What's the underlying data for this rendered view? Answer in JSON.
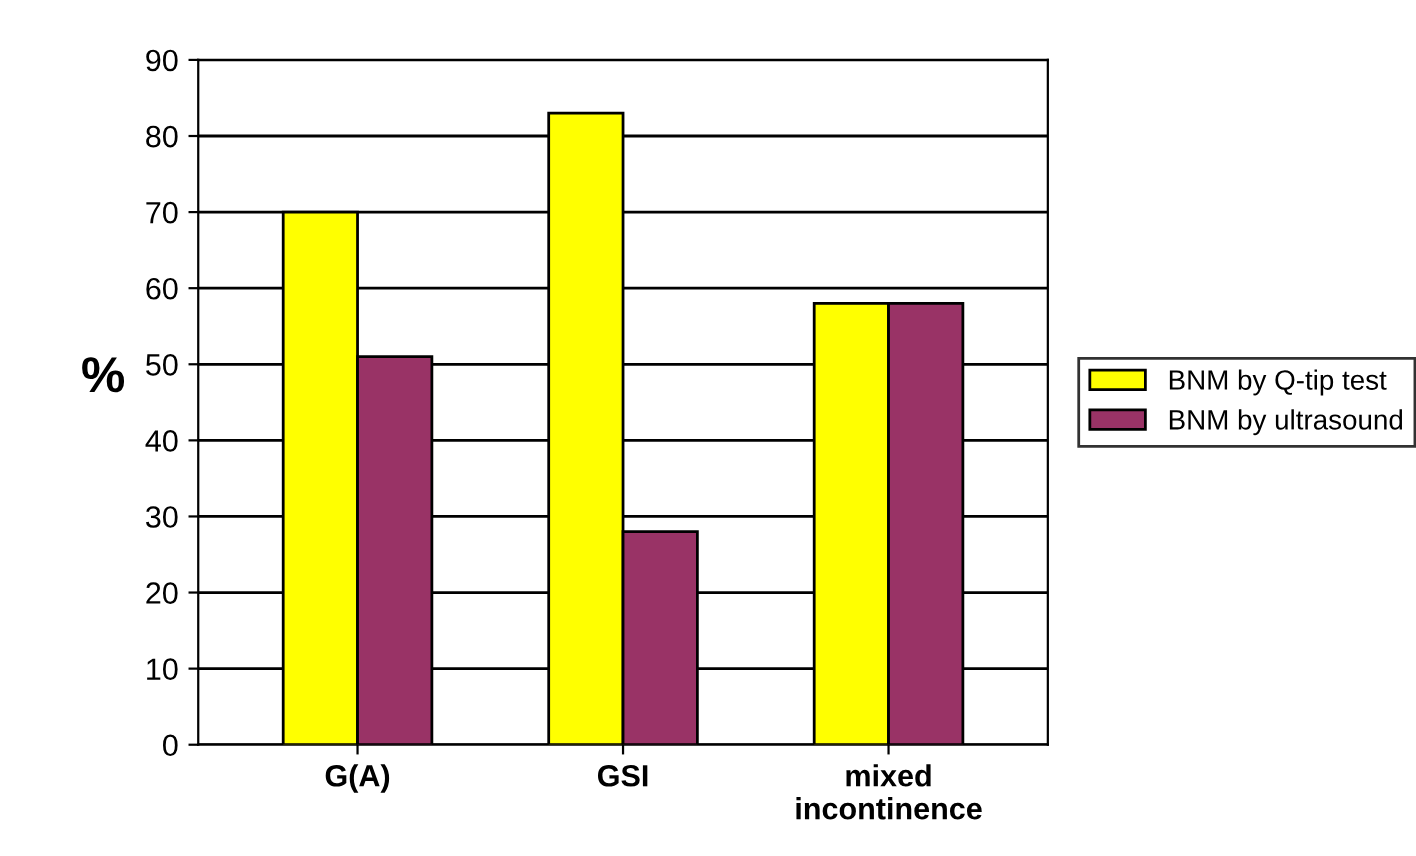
{
  "chart_data": {
    "type": "bar",
    "ylabel": "%",
    "categories": [
      "G(A)",
      "GSI",
      "mixed\nincontinence"
    ],
    "series": [
      {
        "name": "BNM by Q-tip test",
        "color": "#ffff00",
        "values": [
          70,
          83,
          58
        ]
      },
      {
        "name": "BNM by ultrasound",
        "color": "#993366",
        "values": [
          51,
          28,
          58
        ]
      }
    ],
    "ylim": [
      0,
      90
    ],
    "yticks": [
      0,
      10,
      20,
      30,
      40,
      50,
      60,
      70,
      80,
      90
    ],
    "grid": "y",
    "legend": "right"
  }
}
